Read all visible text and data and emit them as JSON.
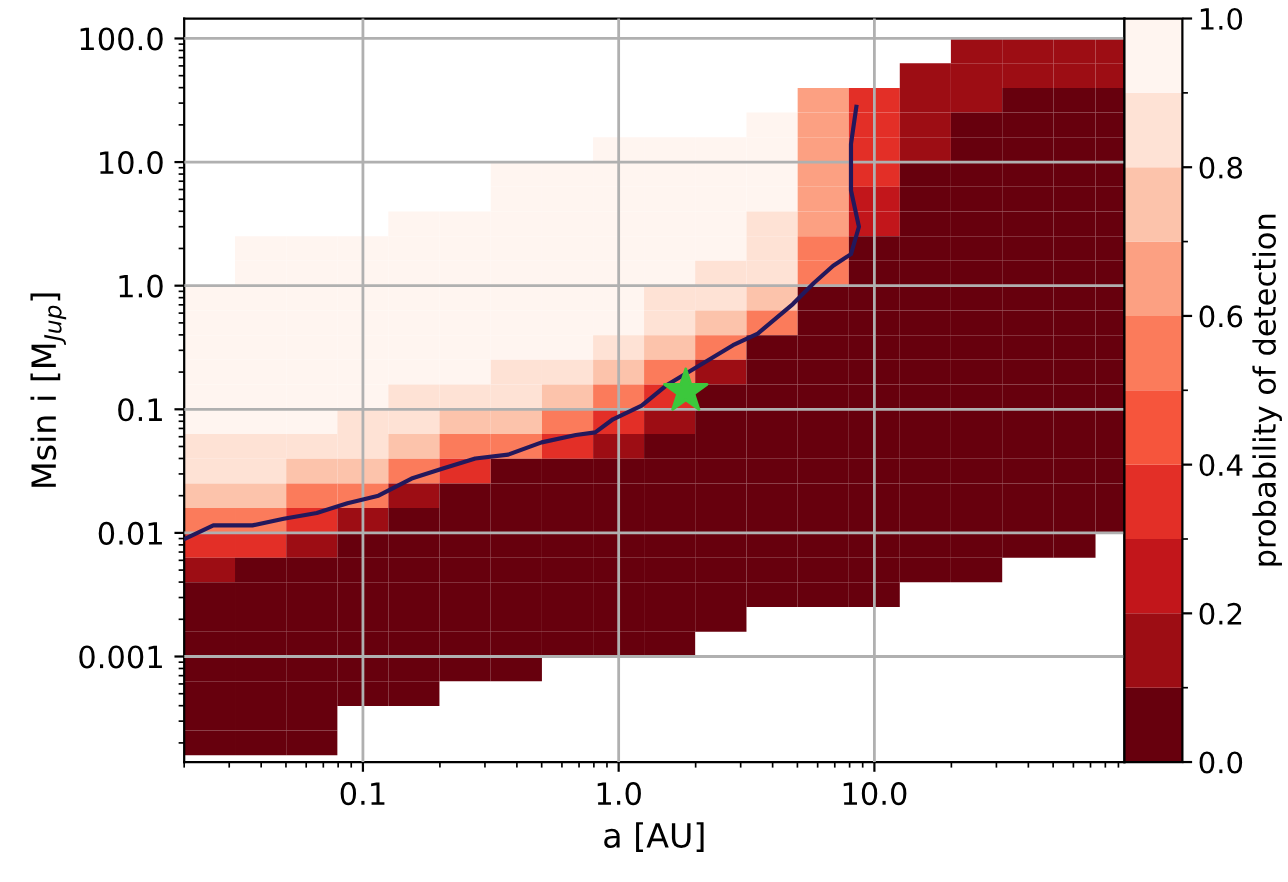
{
  "chart_data": {
    "type": "heatmap",
    "xlabel": "a [AU]",
    "ylabel": "Msin i [M$_{Jup}$]",
    "clabel": "probability of detection",
    "log": "xy",
    "grid": true,
    "xlim": [
      0.02,
      95
    ],
    "ylim": [
      0.00014,
      145
    ],
    "xticks": [
      {
        "value": 0.1,
        "label": "0.1"
      },
      {
        "value": 1,
        "label": "1.0"
      },
      {
        "value": 10,
        "label": "10.0"
      }
    ],
    "yticks": [
      {
        "value": 0.001,
        "label": "0.001"
      },
      {
        "value": 0.01,
        "label": "0.01"
      },
      {
        "value": 0.1,
        "label": "0.1"
      },
      {
        "value": 1,
        "label": "1.0"
      },
      {
        "value": 10,
        "label": "10.0"
      },
      {
        "value": 100,
        "label": "100.0"
      }
    ],
    "clim": [
      0,
      1
    ],
    "cticks": [
      {
        "value": 0,
        "label": "0.0"
      },
      {
        "value": 0.2,
        "label": "0.2"
      },
      {
        "value": 0.4,
        "label": "0.4"
      },
      {
        "value": 0.6,
        "label": "0.6"
      },
      {
        "value": 0.8,
        "label": "0.8"
      },
      {
        "value": 1,
        "label": "1.0"
      }
    ],
    "x": [
      0.0251,
      0.0398,
      0.0631,
      0.1,
      0.158,
      0.251,
      0.398,
      0.631,
      1,
      1.58,
      2.51,
      3.98,
      6.31,
      10,
      15.8,
      25.1,
      39.8,
      63.1,
      85
    ],
    "y": [
      79.4,
      50.1,
      31.6,
      20.0,
      12.6,
      7.94,
      5.01,
      3.16,
      2.0,
      1.26,
      0.794,
      0.501,
      0.316,
      0.2,
      0.126,
      0.0794,
      0.0501,
      0.0316,
      0.02,
      0.0126,
      0.00794,
      0.00501,
      0.00316,
      0.002,
      0.00126,
      0.000794,
      0.000501,
      0.000316,
      0.0002
    ],
    "cells": [
      [
        null,
        null,
        null,
        null,
        null,
        null,
        null,
        null,
        null,
        null,
        null,
        null,
        null,
        null,
        null,
        0.15,
        0.15,
        0.15,
        0.15
      ],
      [
        null,
        null,
        null,
        null,
        null,
        null,
        null,
        null,
        null,
        null,
        null,
        null,
        null,
        null,
        0.15,
        0.15,
        0.15,
        0.15,
        0.15
      ],
      [
        null,
        null,
        null,
        null,
        null,
        null,
        null,
        null,
        null,
        null,
        null,
        null,
        0.65,
        0.35,
        0.15,
        0.15,
        0.05,
        0.05,
        0.05
      ],
      [
        null,
        null,
        null,
        null,
        null,
        null,
        null,
        null,
        null,
        null,
        null,
        0.95,
        0.65,
        0.35,
        0.15,
        0.05,
        0.05,
        0.05,
        0.05
      ],
      [
        null,
        null,
        null,
        null,
        null,
        null,
        null,
        null,
        0.95,
        0.95,
        0.95,
        0.95,
        0.65,
        0.35,
        0.15,
        0.05,
        0.05,
        0.05,
        0.05
      ],
      [
        null,
        null,
        null,
        null,
        null,
        null,
        0.95,
        0.95,
        0.95,
        0.95,
        0.95,
        0.95,
        0.65,
        0.35,
        0.05,
        0.05,
        0.05,
        0.05,
        0.05
      ],
      [
        null,
        null,
        null,
        null,
        null,
        null,
        0.95,
        0.95,
        0.95,
        0.95,
        0.95,
        0.95,
        0.65,
        0.25,
        0.05,
        0.05,
        0.05,
        0.05,
        0.05
      ],
      [
        null,
        null,
        null,
        null,
        0.95,
        0.95,
        0.95,
        0.95,
        0.95,
        0.95,
        0.95,
        0.85,
        0.65,
        0.25,
        0.05,
        0.05,
        0.05,
        0.05,
        0.05
      ],
      [
        null,
        0.95,
        0.95,
        0.95,
        0.95,
        0.95,
        0.95,
        0.95,
        0.95,
        0.95,
        0.95,
        0.85,
        0.55,
        0.05,
        0.05,
        0.05,
        0.05,
        0.05,
        0.05
      ],
      [
        null,
        0.95,
        0.95,
        0.95,
        0.95,
        0.95,
        0.95,
        0.95,
        0.95,
        0.95,
        0.85,
        0.85,
        0.55,
        0.05,
        0.05,
        0.05,
        0.05,
        0.05,
        0.05
      ],
      [
        0.95,
        0.95,
        0.95,
        0.95,
        0.95,
        0.95,
        0.95,
        0.95,
        0.95,
        0.85,
        0.85,
        0.75,
        0.05,
        0.05,
        0.05,
        0.05,
        0.05,
        0.05,
        0.05
      ],
      [
        0.95,
        0.95,
        0.95,
        0.95,
        0.95,
        0.95,
        0.95,
        0.95,
        0.95,
        0.85,
        0.75,
        0.55,
        0.05,
        0.05,
        0.05,
        0.05,
        0.05,
        0.05,
        0.05
      ],
      [
        0.95,
        0.95,
        0.95,
        0.95,
        0.95,
        0.95,
        0.95,
        0.95,
        0.85,
        0.75,
        0.55,
        0.05,
        0.05,
        0.05,
        0.05,
        0.05,
        0.05,
        0.05,
        0.05
      ],
      [
        0.95,
        0.95,
        0.95,
        0.95,
        0.95,
        0.95,
        0.85,
        0.85,
        0.75,
        0.55,
        0.15,
        0.05,
        0.05,
        0.05,
        0.05,
        0.05,
        0.05,
        0.05,
        0.05
      ],
      [
        0.95,
        0.95,
        0.95,
        0.95,
        0.85,
        0.85,
        0.85,
        0.75,
        0.55,
        0.35,
        0.05,
        0.05,
        0.05,
        0.05,
        0.05,
        0.05,
        0.05,
        0.05,
        0.05
      ],
      [
        0.95,
        0.95,
        0.95,
        0.85,
        0.85,
        0.75,
        0.75,
        0.55,
        0.35,
        0.15,
        0.05,
        0.05,
        0.05,
        0.05,
        0.05,
        0.05,
        0.05,
        0.05,
        0.05
      ],
      [
        0.85,
        0.85,
        0.85,
        0.85,
        0.75,
        0.55,
        0.55,
        0.35,
        0.15,
        0.05,
        0.05,
        0.05,
        0.05,
        0.05,
        0.05,
        0.05,
        0.05,
        0.05,
        0.05
      ],
      [
        0.85,
        0.85,
        0.75,
        0.75,
        0.55,
        0.35,
        0.05,
        0.05,
        0.05,
        0.05,
        0.05,
        0.05,
        0.05,
        0.05,
        0.05,
        0.05,
        0.05,
        0.05,
        0.05
      ],
      [
        0.75,
        0.75,
        0.55,
        0.55,
        0.15,
        0.05,
        0.05,
        0.05,
        0.05,
        0.05,
        0.05,
        0.05,
        0.05,
        0.05,
        0.05,
        0.05,
        0.05,
        0.05,
        0.05
      ],
      [
        0.55,
        0.55,
        0.35,
        0.15,
        0.05,
        0.05,
        0.05,
        0.05,
        0.05,
        0.05,
        0.05,
        0.05,
        0.05,
        0.05,
        0.05,
        0.05,
        0.05,
        0.05,
        0.05
      ],
      [
        0.35,
        0.35,
        0.15,
        0.05,
        0.05,
        0.05,
        0.05,
        0.05,
        0.05,
        0.05,
        0.05,
        0.05,
        0.05,
        0.05,
        0.05,
        0.05,
        0.05,
        0.05,
        null
      ],
      [
        0.15,
        0.05,
        0.05,
        0.05,
        0.05,
        0.05,
        0.05,
        0.05,
        0.05,
        0.05,
        0.05,
        0.05,
        0.05,
        0.05,
        0.05,
        0.05,
        null,
        null,
        null
      ],
      [
        0.05,
        0.05,
        0.05,
        0.05,
        0.05,
        0.05,
        0.05,
        0.05,
        0.05,
        0.05,
        0.05,
        0.05,
        0.05,
        0.05,
        null,
        null,
        null,
        null,
        null
      ],
      [
        0.05,
        0.05,
        0.05,
        0.05,
        0.05,
        0.05,
        0.05,
        0.05,
        0.05,
        0.05,
        0.05,
        null,
        null,
        null,
        null,
        null,
        null,
        null,
        null
      ],
      [
        0.05,
        0.05,
        0.05,
        0.05,
        0.05,
        0.05,
        0.05,
        0.05,
        0.05,
        0.05,
        null,
        null,
        null,
        null,
        null,
        null,
        null,
        null,
        null
      ],
      [
        0.05,
        0.05,
        0.05,
        0.05,
        0.05,
        0.05,
        0.05,
        null,
        null,
        null,
        null,
        null,
        null,
        null,
        null,
        null,
        null,
        null,
        null
      ],
      [
        0.05,
        0.05,
        0.05,
        0.05,
        0.05,
        null,
        null,
        null,
        null,
        null,
        null,
        null,
        null,
        null,
        null,
        null,
        null,
        null,
        null
      ],
      [
        0.05,
        0.05,
        0.05,
        null,
        null,
        null,
        null,
        null,
        null,
        null,
        null,
        null,
        null,
        null,
        null,
        null,
        null,
        null,
        null
      ],
      [
        0.05,
        0.05,
        0.05,
        null,
        null,
        null,
        null,
        null,
        null,
        null,
        null,
        null,
        null,
        null,
        null,
        null,
        null,
        null,
        null
      ]
    ],
    "series": [
      {
        "type": "line",
        "color": "#23185c",
        "line_style": "solid",
        "marker": "none",
        "x": [
          0.02,
          0.026,
          0.037,
          0.049,
          0.066,
          0.087,
          0.115,
          0.155,
          0.204,
          0.275,
          0.37,
          0.5,
          0.68,
          0.81,
          0.95,
          1.23,
          1.55,
          2.1,
          2.8,
          3.5,
          4.8,
          5.8,
          6.9,
          8.1,
          8.7,
          8.1,
          8.1,
          8.5
        ],
        "values": [
          0.0089,
          0.0115,
          0.0115,
          0.013,
          0.0145,
          0.0174,
          0.02,
          0.0275,
          0.033,
          0.04,
          0.043,
          0.054,
          0.062,
          0.065,
          0.083,
          0.107,
          0.158,
          0.23,
          0.33,
          0.41,
          0.71,
          1.05,
          1.45,
          1.8,
          3.0,
          5.9,
          14,
          28
        ]
      },
      {
        "type": "scatter",
        "color": "#3cc83c",
        "marker": "star",
        "x": [
          1.83
        ],
        "values": [
          0.14
        ]
      }
    ]
  }
}
